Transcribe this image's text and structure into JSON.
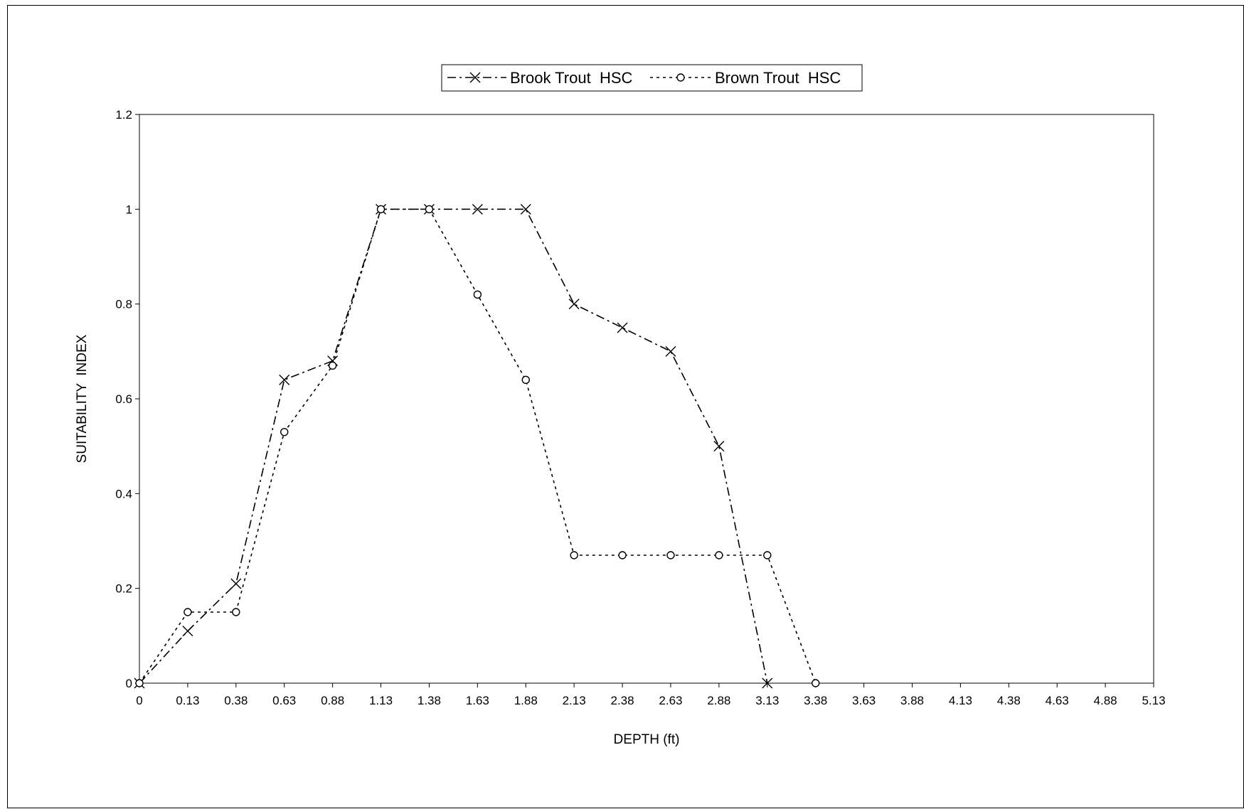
{
  "chart_data": {
    "type": "line",
    "title": "",
    "xlabel": "DEPTH (ft)",
    "ylabel": "SUITABILITY  INDEX",
    "x_tick_labels": [
      "0",
      "0.13",
      "0.38",
      "0.63",
      "0.88",
      "1.13",
      "1.38",
      "1.63",
      "1.88",
      "2.13",
      "2.38",
      "2.63",
      "2.88",
      "3.13",
      "3.38",
      "3.63",
      "3.88",
      "4.13",
      "4.38",
      "4.63",
      "4.88",
      "5.13"
    ],
    "y_ticks": [
      0,
      0.2,
      0.4,
      0.6,
      0.8,
      1,
      1.2
    ],
    "y_tick_labels": [
      "0",
      "0.2",
      "0.4",
      "0.6",
      "0.8",
      "1",
      "1.2"
    ],
    "ylim": [
      0,
      1.2
    ],
    "grid": false,
    "legend_position": "top-center",
    "series": [
      {
        "name": "Brook Trout  HSC",
        "marker": "x",
        "line_style": "dash-dot",
        "color": "#000000",
        "x": [
          "0",
          "0.13",
          "0.38",
          "0.63",
          "0.88",
          "1.13",
          "1.38",
          "1.63",
          "1.88",
          "2.13",
          "2.38",
          "2.63",
          "2.88",
          "3.13"
        ],
        "y": [
          0,
          0.11,
          0.21,
          0.64,
          0.68,
          1,
          1,
          1,
          1,
          0.8,
          0.75,
          0.7,
          0.5,
          0
        ]
      },
      {
        "name": "Brown Trout  HSC",
        "marker": "circle",
        "line_style": "dotted",
        "color": "#000000",
        "x": [
          "0",
          "0.13",
          "0.38",
          "0.63",
          "0.88",
          "1.13",
          "1.38",
          "1.63",
          "1.88",
          "2.13",
          "2.38",
          "2.63",
          "2.88",
          "3.13",
          "3.38"
        ],
        "y": [
          0,
          0.15,
          0.15,
          0.53,
          0.67,
          1,
          1,
          0.82,
          0.64,
          0.27,
          0.27,
          0.27,
          0.27,
          0.27,
          0
        ]
      }
    ]
  }
}
